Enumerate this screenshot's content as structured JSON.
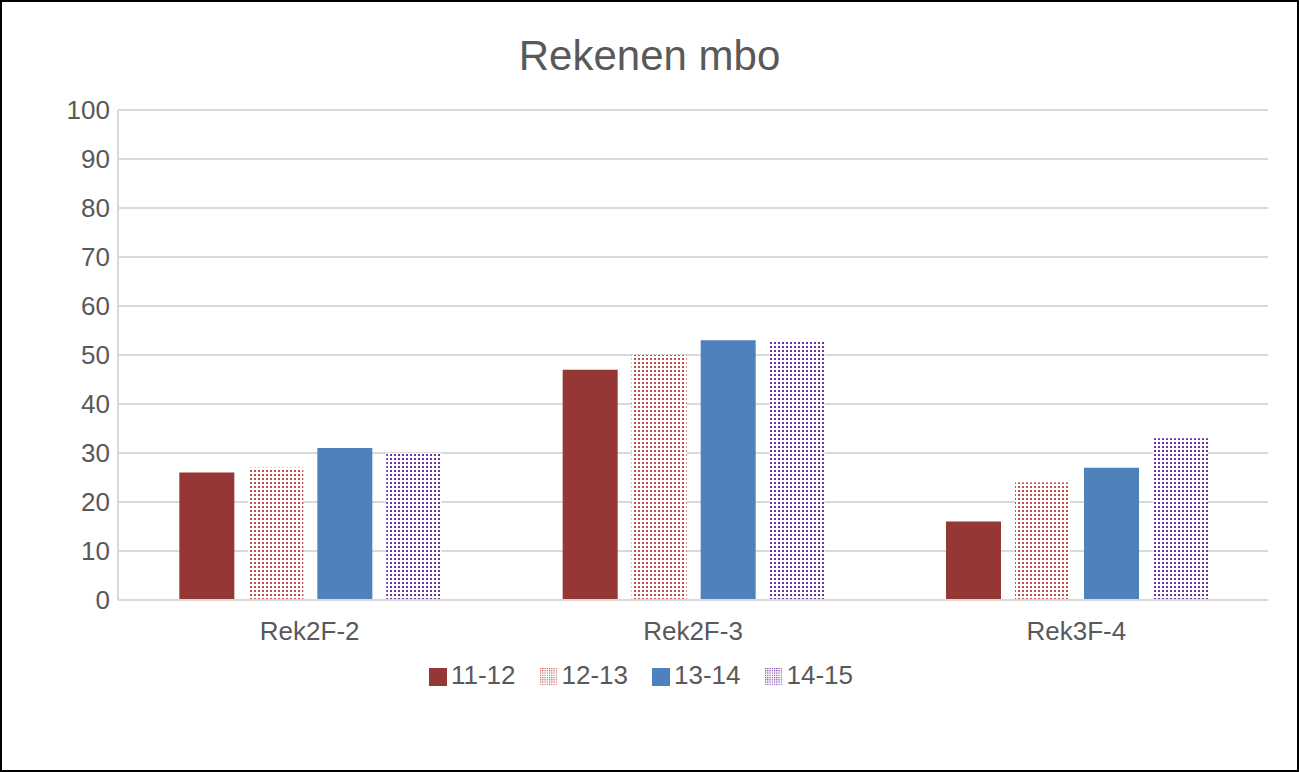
{
  "chart_data": {
    "type": "bar",
    "title": "Rekenen mbo",
    "categories": [
      "Rek2F-2",
      "Rek2F-3",
      "Rek3F-4"
    ],
    "series": [
      {
        "name": "11-12",
        "color": "#953735",
        "values": [
          26,
          47,
          16
        ]
      },
      {
        "name": "12-13",
        "color": "#c0504d",
        "values": [
          27,
          50,
          24
        ]
      },
      {
        "name": "13-14",
        "color": "#4f81bd",
        "values": [
          31,
          53,
          27
        ]
      },
      {
        "name": "14-15",
        "color": "#7030a0",
        "values": [
          30,
          53,
          33
        ]
      }
    ],
    "ylim": [
      0,
      100
    ],
    "yticks": [
      0,
      10,
      20,
      30,
      40,
      50,
      60,
      70,
      80,
      90,
      100
    ],
    "grid": true,
    "legend": "bottom"
  }
}
